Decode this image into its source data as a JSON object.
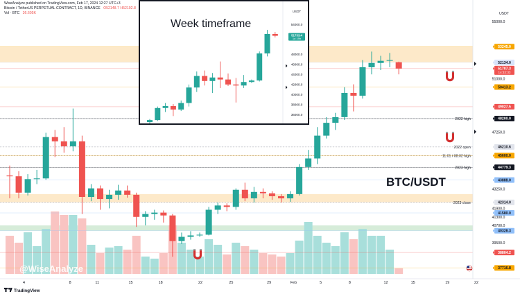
{
  "header": {
    "published_line": "WiseAnalyze published on TradingView.com, Feb 17, 2024 12:27 UTC+3",
    "symbol": "Bitcoin / TetherUS PERPETUAL CONTRACT, 1D, BINANCE",
    "ohlc": "O52148.7 H52192.8",
    "volume_label": "Vol · BTC",
    "volume_value": "36.605K"
  },
  "watermark": "@WiseAnalyze",
  "pair_label": "BTC/USDT",
  "footer": {
    "brand": "TradingView"
  },
  "colors": {
    "up": "#26a69a",
    "down": "#ef5350",
    "vol_up": "#a8dfdb",
    "vol_down": "#f9c4c2",
    "zone_orange": "#fde5c0",
    "zone_green": "#cfe9d2",
    "accent_blue": "#2962ff"
  },
  "icons": {
    "magnet": "magnet-icon",
    "flag": "us-flag-icon",
    "tv_logo": "tradingview-logo-icon"
  },
  "chart_data": [
    {
      "type": "candlestick",
      "title": "",
      "interval": "1D",
      "x_tick_labels": [
        "4",
        "8",
        "11",
        "15",
        "18",
        "22",
        "25",
        "29",
        "Feb",
        "5",
        "8",
        "12",
        "15",
        "19",
        "22"
      ],
      "y_axis_labels": [
        "55000.0",
        "53245.0",
        "52134.0",
        "51707.3",
        "51000.0",
        "50413.2",
        "49027.5",
        "48200.0",
        "47250.0",
        "46210.6",
        "45600.0",
        "44779.3",
        "43888.0",
        "43250.0",
        "42314.0",
        "41900.0",
        "41580.0",
        "41300.0",
        "40700.0",
        "40328.3",
        "39500.0",
        "38804.2",
        "37716.8"
      ],
      "y_axis_label_tags": [
        {
          "value": "53245.0",
          "color": "#f7a600",
          "text_color": "#ffffff"
        },
        {
          "value": "52134.0",
          "color": "#d7e3fb",
          "text_color": "#131722"
        },
        {
          "value": "51707.3",
          "color": "#ef5350",
          "text_color": "#ffffff",
          "sub": "14:32:33"
        },
        {
          "value": "50413.2",
          "color": "#f7a600",
          "text_color": "#131722"
        },
        {
          "value": "49027.5",
          "color": "#ef5350",
          "text_color": "#ffffff"
        },
        {
          "value": "48200.0",
          "color": "#131722",
          "text_color": "#ffffff"
        },
        {
          "value": "46210.6",
          "color": "#e0e3eb",
          "text_color": "#131722"
        },
        {
          "value": "45600.0",
          "color": "#f7a600",
          "text_color": "#131722"
        },
        {
          "value": "44779.3",
          "color": "#131722",
          "text_color": "#ffffff"
        },
        {
          "value": "43888.0",
          "color": "#90bff9",
          "text_color": "#131722"
        },
        {
          "value": "42314.0",
          "color": "#e0e3eb",
          "text_color": "#131722"
        },
        {
          "value": "41580.0",
          "color": "#90bff9",
          "text_color": "#131722"
        },
        {
          "value": "40328.3",
          "color": "#90bff9",
          "text_color": "#131722"
        },
        {
          "value": "38804.2",
          "color": "#ef5350",
          "text_color": "#ffffff"
        },
        {
          "value": "37716.8",
          "color": "#f7a600",
          "text_color": "#131722"
        }
      ],
      "level_labels": [
        {
          "text": "2022 high",
          "value": 48200.0
        },
        {
          "text": "2022 open",
          "value": 46210.6
        },
        {
          "text": "11.01 / 08.02 high",
          "value": 45600.0
        },
        {
          "text": "2023 high",
          "value": 44779.3
        },
        {
          "text": "2023 close",
          "value": 42314.0
        }
      ],
      "zones": [
        {
          "from": 52134.0,
          "to": 53245.0,
          "color": "orange"
        },
        {
          "from": 42314.0,
          "to": 42900.0,
          "color": "orange"
        },
        {
          "from": 40328.3,
          "to": 40700.0,
          "color": "green"
        }
      ],
      "y_range": [
        37300,
        55300
      ],
      "candles": [
        {
          "o": 44200,
          "h": 44900,
          "l": 42600,
          "c": 44150,
          "v": 0.55
        },
        {
          "o": 44150,
          "h": 44500,
          "l": 42600,
          "c": 43000,
          "v": 0.45
        },
        {
          "o": 43000,
          "h": 44300,
          "l": 42800,
          "c": 43950,
          "v": 0.6
        },
        {
          "o": 43950,
          "h": 44600,
          "l": 43600,
          "c": 44000,
          "v": 0.4
        },
        {
          "o": 44000,
          "h": 47200,
          "l": 43900,
          "c": 46900,
          "v": 0.65
        },
        {
          "o": 46900,
          "h": 47400,
          "l": 45500,
          "c": 46600,
          "v": 0.9
        },
        {
          "o": 46600,
          "h": 47600,
          "l": 45800,
          "c": 46250,
          "v": 0.85
        },
        {
          "o": 46250,
          "h": 48900,
          "l": 45900,
          "c": 46600,
          "v": 0.85
        },
        {
          "o": 46600,
          "h": 47000,
          "l": 41500,
          "c": 42700,
          "v": 0.8
        },
        {
          "o": 42700,
          "h": 43600,
          "l": 42400,
          "c": 43300,
          "v": 0.42
        },
        {
          "o": 43300,
          "h": 43500,
          "l": 41800,
          "c": 42550,
          "v": 0.3
        },
        {
          "o": 42550,
          "h": 43200,
          "l": 41900,
          "c": 42850,
          "v": 0.38
        },
        {
          "o": 42850,
          "h": 43550,
          "l": 42500,
          "c": 43150,
          "v": 0.4
        },
        {
          "o": 43150,
          "h": 43500,
          "l": 42650,
          "c": 42850,
          "v": 0.35
        },
        {
          "o": 42850,
          "h": 43000,
          "l": 40600,
          "c": 41300,
          "v": 0.55
        },
        {
          "o": 41300,
          "h": 41700,
          "l": 40700,
          "c": 41500,
          "v": 0.25
        },
        {
          "o": 41500,
          "h": 41800,
          "l": 41100,
          "c": 41600,
          "v": 0.22
        },
        {
          "o": 41600,
          "h": 41750,
          "l": 40900,
          "c": 41400,
          "v": 0.3
        },
        {
          "o": 41400,
          "h": 41500,
          "l": 38500,
          "c": 39600,
          "v": 0.7
        },
        {
          "o": 39600,
          "h": 40200,
          "l": 39400,
          "c": 39900,
          "v": 0.45
        },
        {
          "o": 39900,
          "h": 40300,
          "l": 39700,
          "c": 40000,
          "v": 0.35
        },
        {
          "o": 40000,
          "h": 40200,
          "l": 39900,
          "c": 40050,
          "v": 0.25
        },
        {
          "o": 40050,
          "h": 42000,
          "l": 40000,
          "c": 41800,
          "v": 0.5
        },
        {
          "o": 41800,
          "h": 42300,
          "l": 41500,
          "c": 42100,
          "v": 0.42
        },
        {
          "o": 42100,
          "h": 42250,
          "l": 41700,
          "c": 42000,
          "v": 0.28
        },
        {
          "o": 42000,
          "h": 43300,
          "l": 41800,
          "c": 43200,
          "v": 0.45
        },
        {
          "o": 43200,
          "h": 43700,
          "l": 42400,
          "c": 42600,
          "v": 0.4
        },
        {
          "o": 42600,
          "h": 43400,
          "l": 42300,
          "c": 43050,
          "v": 0.35
        },
        {
          "o": 43050,
          "h": 43300,
          "l": 42600,
          "c": 42950,
          "v": 0.3
        },
        {
          "o": 42950,
          "h": 43100,
          "l": 42500,
          "c": 42750,
          "v": 0.28
        },
        {
          "o": 42750,
          "h": 42900,
          "l": 42300,
          "c": 42600,
          "v": 0.25
        },
        {
          "o": 42600,
          "h": 43100,
          "l": 42350,
          "c": 42900,
          "v": 0.3
        },
        {
          "o": 42900,
          "h": 45000,
          "l": 42800,
          "c": 44800,
          "v": 0.48
        },
        {
          "o": 44800,
          "h": 46000,
          "l": 44600,
          "c": 45400,
          "v": 0.75
        },
        {
          "o": 45400,
          "h": 47600,
          "l": 45000,
          "c": 47000,
          "v": 0.55
        },
        {
          "o": 47000,
          "h": 48300,
          "l": 46800,
          "c": 47900,
          "v": 0.45
        },
        {
          "o": 47900,
          "h": 48600,
          "l": 47400,
          "c": 48300,
          "v": 0.4
        },
        {
          "o": 48300,
          "h": 50400,
          "l": 48100,
          "c": 50000,
          "v": 0.6
        },
        {
          "o": 50000,
          "h": 50600,
          "l": 48700,
          "c": 49800,
          "v": 0.5
        },
        {
          "o": 49800,
          "h": 52300,
          "l": 49600,
          "c": 51800,
          "v": 0.65
        },
        {
          "o": 51800,
          "h": 52900,
          "l": 51300,
          "c": 52100,
          "v": 0.55
        },
        {
          "o": 52100,
          "h": 52600,
          "l": 51600,
          "c": 52250,
          "v": 0.55
        },
        {
          "o": 52250,
          "h": 52800,
          "l": 51800,
          "c": 52300,
          "v": 0.35
        },
        {
          "o": 52148.7,
          "h": 52192.8,
          "l": 51300,
          "c": 51707.3,
          "v": 0.08
        }
      ]
    },
    {
      "type": "candlestick",
      "title": "Week timeframe",
      "interval": "1W",
      "y_axis_unit": "USDT",
      "y_axis_labels": [
        "54000.0",
        "52000.0",
        "48000.0",
        "46000.0",
        "44000.0",
        "42000.0",
        "40000.0",
        "38000.0",
        "36000.0"
      ],
      "price_tag": {
        "value": "51733.4",
        "sub": "1d 19h",
        "color": "#26a69a"
      },
      "y_range": [
        34500,
        55000
      ],
      "candles": [
        {
          "o": 34500,
          "h": 35100,
          "l": 34000,
          "c": 34900
        },
        {
          "o": 34900,
          "h": 37600,
          "l": 34700,
          "c": 37300
        },
        {
          "o": 37300,
          "h": 38300,
          "l": 36500,
          "c": 37700
        },
        {
          "o": 37700,
          "h": 38100,
          "l": 35700,
          "c": 37000
        },
        {
          "o": 37000,
          "h": 38800,
          "l": 36700,
          "c": 38300
        },
        {
          "o": 38300,
          "h": 42000,
          "l": 37600,
          "c": 41400
        },
        {
          "o": 41400,
          "h": 44600,
          "l": 40500,
          "c": 43700
        },
        {
          "o": 43700,
          "h": 44800,
          "l": 41800,
          "c": 42700
        },
        {
          "o": 42700,
          "h": 44300,
          "l": 40300,
          "c": 43400
        },
        {
          "o": 43400,
          "h": 46600,
          "l": 41300,
          "c": 43000
        },
        {
          "o": 43000,
          "h": 44200,
          "l": 41700,
          "c": 42000
        },
        {
          "o": 42000,
          "h": 43300,
          "l": 38400,
          "c": 41800
        },
        {
          "o": 41800,
          "h": 43900,
          "l": 41300,
          "c": 42500
        },
        {
          "o": 42500,
          "h": 43000,
          "l": 42300,
          "c": 42800
        },
        {
          "o": 42800,
          "h": 48600,
          "l": 42600,
          "c": 48200
        },
        {
          "o": 48200,
          "h": 52900,
          "l": 47600,
          "c": 52100
        },
        {
          "o": 52100,
          "h": 52500,
          "l": 51400,
          "c": 51733.4
        }
      ]
    }
  ]
}
